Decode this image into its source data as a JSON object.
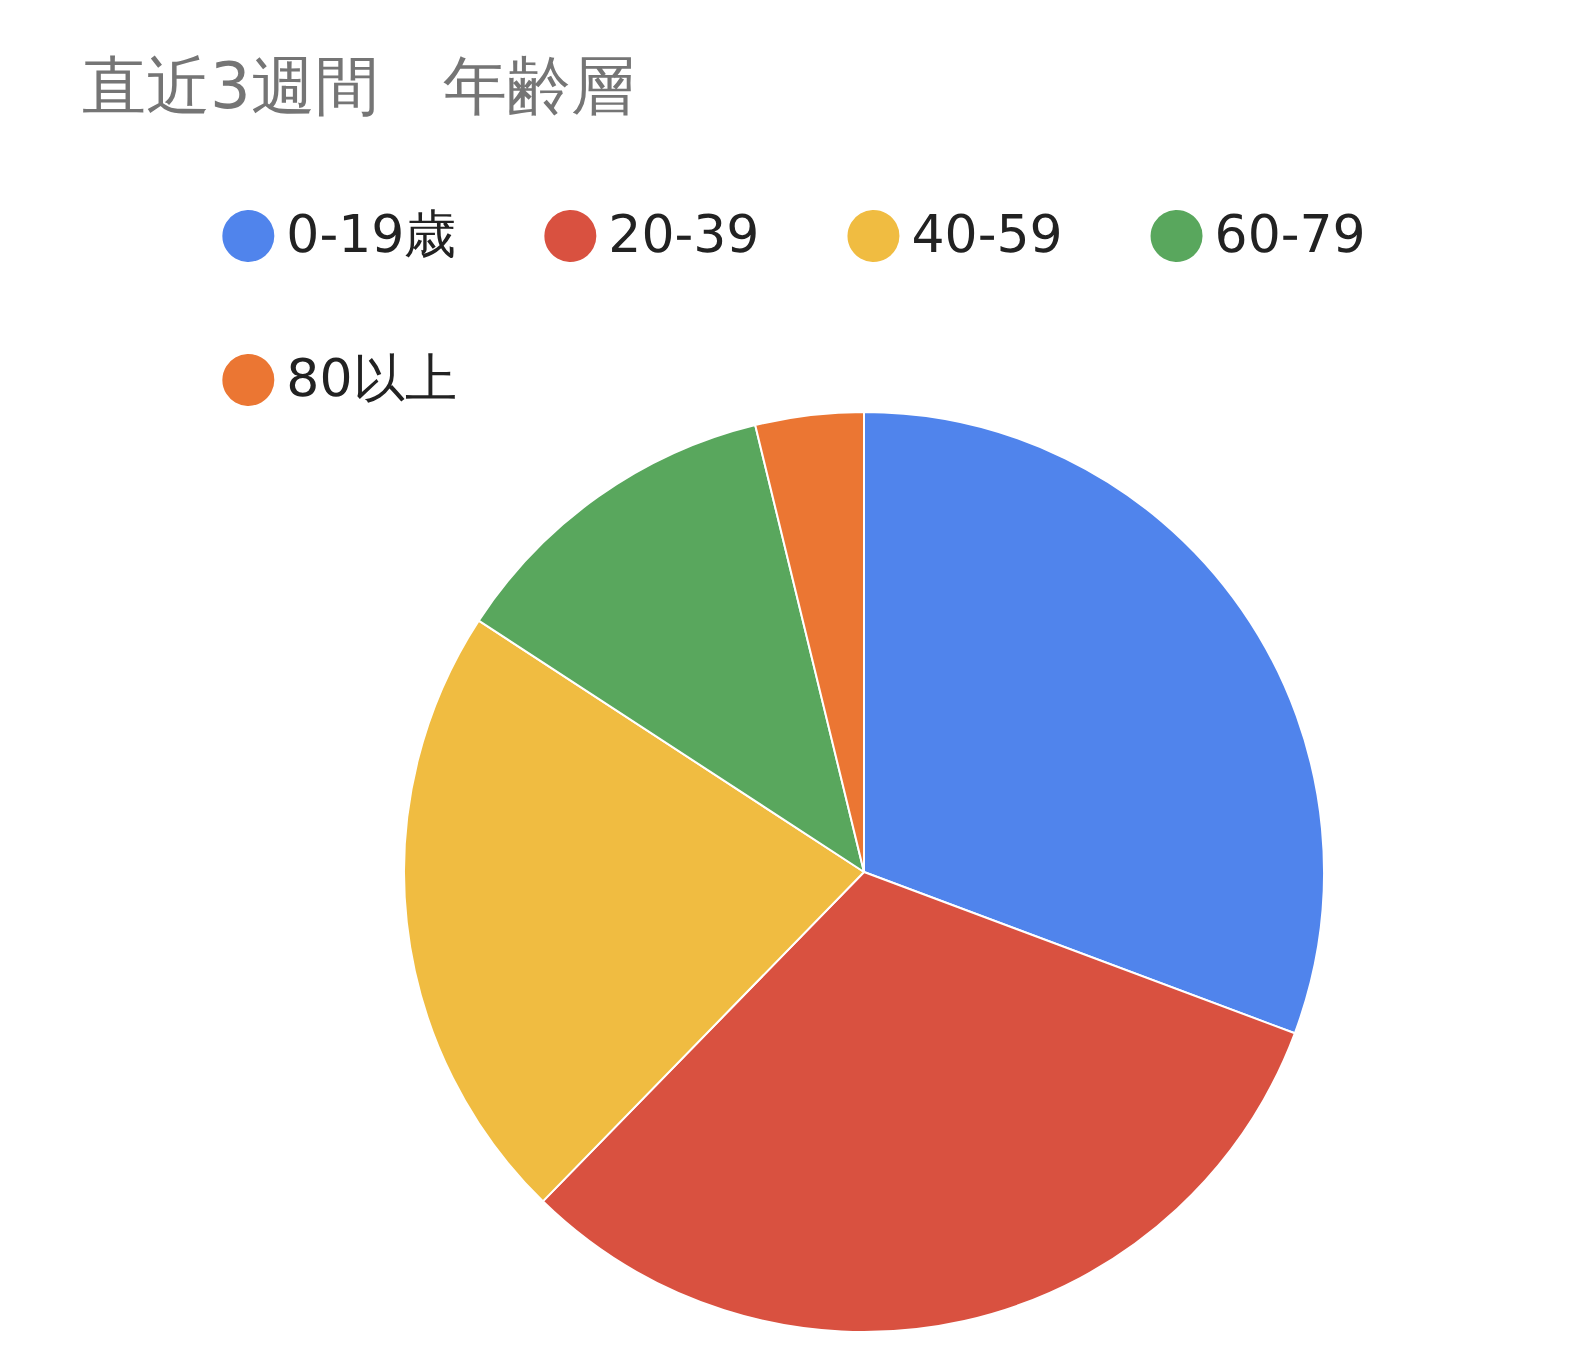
{
  "chart_data": {
    "type": "pie",
    "title": "直近3週間　年齢層",
    "categories": [
      "0-19歳",
      "20-39",
      "40-59",
      "60-79",
      "80以上"
    ],
    "values": [
      30.7,
      31.6,
      21.9,
      12.0,
      3.8
    ],
    "colors": [
      "#5084ec",
      "#d95140",
      "#f0bc41",
      "#59a75d",
      "#eb7633"
    ],
    "legend": "top"
  }
}
